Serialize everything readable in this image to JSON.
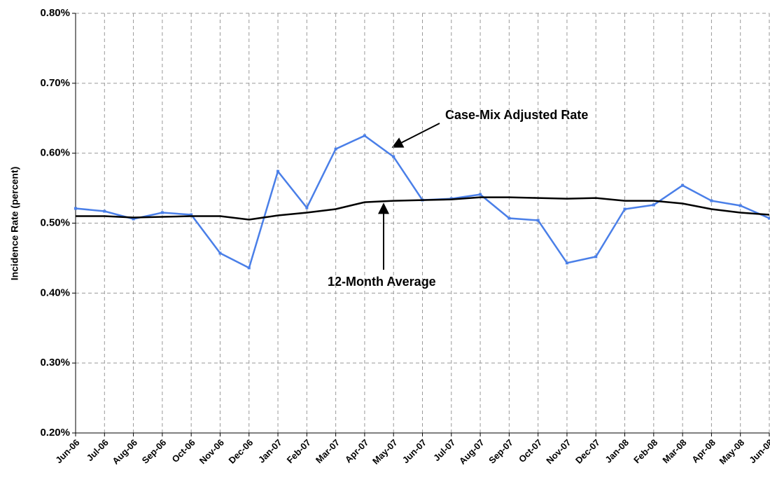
{
  "chart_data": {
    "type": "line",
    "y_label": "Incidence Rate  (percent)",
    "annotations": [
      "Case-Mix Adjusted Rate",
      "12-Month Average"
    ],
    "categories": [
      "Jun-06",
      "Jul-06",
      "Aug-06",
      "Sep-06",
      "Oct-06",
      "Nov-06",
      "Dec-06",
      "Jan-07",
      "Feb-07",
      "Mar-07",
      "Apr-07",
      "May-07",
      "Jun-07",
      "Jul-07",
      "Aug-07",
      "Sep-07",
      "Oct-07",
      "Nov-07",
      "Dec-07",
      "Jan-08",
      "Feb-08",
      "Mar-08",
      "Apr-08",
      "May-08",
      "Jun-08"
    ],
    "series": [
      {
        "name": "Case-Mix Adjusted Rate",
        "color": "#4a7fe8",
        "markers": true,
        "values": [
          0.521,
          0.517,
          0.506,
          0.515,
          0.512,
          0.457,
          0.436,
          0.574,
          0.522,
          0.606,
          0.625,
          0.595,
          0.533,
          0.535,
          0.541,
          0.507,
          0.504,
          0.443,
          0.452,
          0.52,
          0.526,
          0.554,
          0.532,
          0.525,
          0.507
        ]
      },
      {
        "name": "12-Month Average",
        "color": "#000000",
        "markers": false,
        "values": [
          0.51,
          0.51,
          0.508,
          0.509,
          0.51,
          0.51,
          0.505,
          0.511,
          0.515,
          0.52,
          0.53,
          0.532,
          0.533,
          0.534,
          0.537,
          0.537,
          0.536,
          0.535,
          0.536,
          0.532,
          0.532,
          0.528,
          0.52,
          0.515,
          0.512
        ]
      }
    ],
    "ylim": [
      0.2,
      0.8
    ],
    "yticks": [
      {
        "value": 0.2,
        "label": "0.20%"
      },
      {
        "value": 0.3,
        "label": "0.30%"
      },
      {
        "value": 0.4,
        "label": "0.40%"
      },
      {
        "value": 0.5,
        "label": "0.50%"
      },
      {
        "value": 0.6,
        "label": "0.60%"
      },
      {
        "value": 0.7,
        "label": "0.70%"
      },
      {
        "value": 0.8,
        "label": "0.80%"
      }
    ],
    "grid": true
  }
}
